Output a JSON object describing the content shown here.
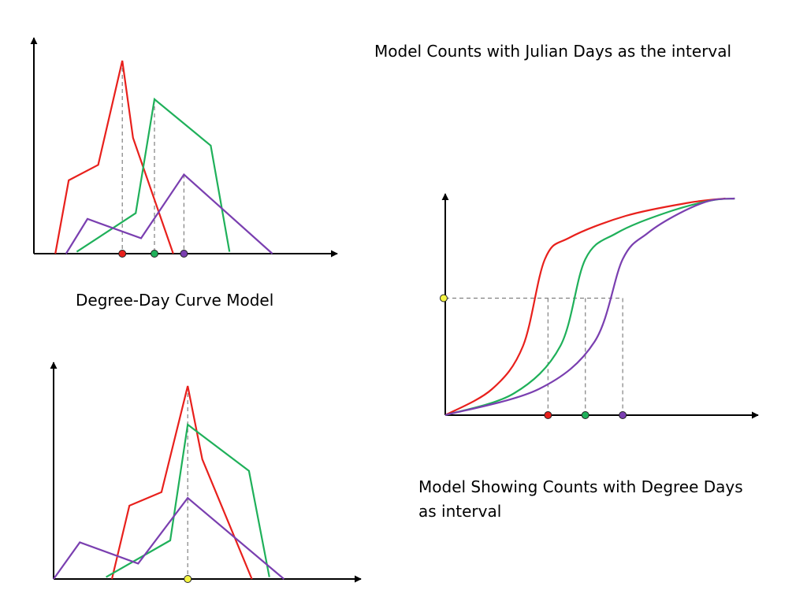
{
  "captions": {
    "julian": "Model Counts with Julian Days as the interval",
    "degree_day_curve": "Degree-Day Curve Model",
    "degree_days_line1": "Model Showing Counts with Degree Days",
    "degree_days_line2": "as interval"
  },
  "colors": {
    "red": "#e8201c",
    "green": "#1fb05a",
    "purple": "#7a3fb0",
    "yellow": "#f5f542",
    "axis": "#000000",
    "guide": "#808080"
  },
  "chart_data": [
    {
      "type": "line",
      "name": "julian-days-counts",
      "x_range": [
        0,
        100
      ],
      "y_range": [
        0,
        100
      ],
      "series": [
        {
          "color": "red",
          "points": [
            [
              8,
              0
            ],
            [
              13,
              38
            ],
            [
              24,
              46
            ],
            [
              33,
              100
            ],
            [
              37,
              60
            ],
            [
              52,
              0
            ]
          ]
        },
        {
          "color": "green",
          "points": [
            [
              16,
              1
            ],
            [
              38,
              21
            ],
            [
              45,
              80
            ],
            [
              66,
              56
            ],
            [
              73,
              1
            ]
          ]
        },
        {
          "color": "purple",
          "points": [
            [
              12,
              0
            ],
            [
              20,
              18
            ],
            [
              40,
              8
            ],
            [
              56,
              41
            ],
            [
              89,
              0
            ]
          ]
        }
      ],
      "peak_markers": [
        {
          "color": "red",
          "x": 33
        },
        {
          "color": "green",
          "x": 45
        },
        {
          "color": "purple",
          "x": 56
        }
      ]
    },
    {
      "type": "line",
      "name": "degree-days-counts",
      "x_range": [
        0,
        100
      ],
      "y_range": [
        0,
        100
      ],
      "series": [
        {
          "color": "red",
          "points": [
            [
              20,
              0
            ],
            [
              26,
              38
            ],
            [
              37,
              45
            ],
            [
              46,
              100
            ],
            [
              51,
              62
            ],
            [
              68,
              0
            ]
          ]
        },
        {
          "color": "green",
          "points": [
            [
              18,
              1
            ],
            [
              40,
              20
            ],
            [
              46,
              80
            ],
            [
              67,
              56
            ],
            [
              74,
              1
            ]
          ]
        },
        {
          "color": "purple",
          "points": [
            [
              0,
              0
            ],
            [
              9,
              19
            ],
            [
              29,
              8
            ],
            [
              46,
              42
            ],
            [
              79,
              0
            ]
          ]
        }
      ],
      "peak_markers": [
        {
          "color": "yellow",
          "x": 46
        }
      ]
    },
    {
      "type": "line",
      "name": "degree-day-curve",
      "x_range": [
        0,
        100
      ],
      "y_range": [
        0,
        100
      ],
      "series": [
        {
          "color": "red",
          "points": [
            [
              0,
              0
            ],
            [
              15,
              12
            ],
            [
              25,
              32
            ],
            [
              32,
              72
            ],
            [
              40,
              82
            ],
            [
              58,
              92
            ],
            [
              78,
              98
            ],
            [
              90,
              100
            ]
          ]
        },
        {
          "color": "green",
          "points": [
            [
              0,
              0
            ],
            [
              22,
              10
            ],
            [
              37,
              32
            ],
            [
              45,
              72
            ],
            [
              55,
              84
            ],
            [
              70,
              93
            ],
            [
              85,
              99
            ],
            [
              93,
              100
            ]
          ]
        },
        {
          "color": "purple",
          "points": [
            [
              0,
              0
            ],
            [
              30,
              12
            ],
            [
              48,
              34
            ],
            [
              57,
              72
            ],
            [
              65,
              84
            ],
            [
              75,
              93
            ],
            [
              85,
              99
            ],
            [
              93,
              100
            ]
          ]
        }
      ],
      "level_marker": {
        "color": "yellow",
        "y": 54
      },
      "crossing_markers": [
        {
          "color": "red",
          "x": 33
        },
        {
          "color": "green",
          "x": 45
        },
        {
          "color": "purple",
          "x": 57
        }
      ]
    }
  ]
}
